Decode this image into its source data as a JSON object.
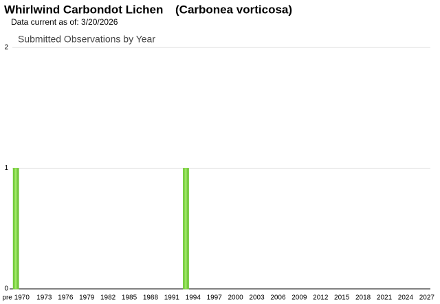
{
  "header": {
    "common_name": "Whirlwind Carbondot Lichen",
    "scientific_name": "(Carbonea vorticosa)",
    "data_current": "Data current as of: 3/20/2026"
  },
  "chart_data": {
    "type": "bar",
    "title": "Submitted Observations by Year",
    "categories": [
      "pre 1970",
      null,
      null,
      null,
      "1973",
      null,
      null,
      "1976",
      null,
      null,
      "1979",
      null,
      null,
      "1982",
      null,
      null,
      "1985",
      null,
      null,
      "1988",
      null,
      null,
      "1991",
      null,
      null,
      "1994",
      null,
      null,
      "1997",
      null,
      null,
      "2000",
      null,
      null,
      "2003",
      null,
      null,
      "2006",
      null,
      null,
      "2009",
      null,
      null,
      "2012",
      null,
      null,
      "2015",
      null,
      null,
      "2018",
      null,
      null,
      "2021",
      null,
      null,
      "2024",
      null,
      null,
      "2027"
    ],
    "values": [
      1,
      0,
      0,
      0,
      0,
      0,
      0,
      0,
      0,
      0,
      0,
      0,
      0,
      0,
      0,
      0,
      0,
      0,
      0,
      0,
      0,
      0,
      0,
      0,
      1,
      0,
      0,
      0,
      0,
      0,
      0,
      0,
      0,
      0,
      0,
      0,
      0,
      0,
      0,
      0,
      0,
      0,
      0,
      0,
      0,
      0,
      0,
      0,
      0,
      0,
      0,
      0,
      0,
      0,
      0,
      0,
      0,
      0,
      0
    ],
    "color": "#7ad33a",
    "ylim": [
      0,
      2
    ],
    "yticks": [
      0,
      1,
      2
    ],
    "grid": true
  }
}
